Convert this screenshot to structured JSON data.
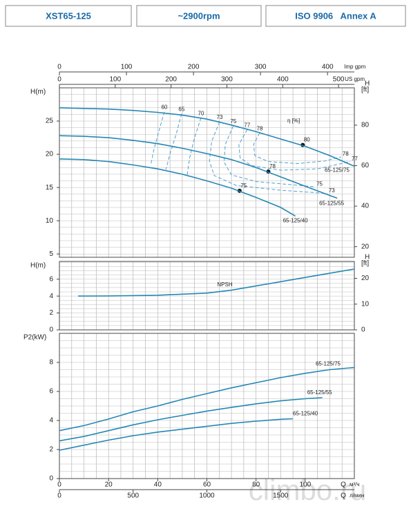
{
  "header": {
    "model": "XST65-125",
    "speed": "~2900rpm",
    "standard": "ISO 9906   Annex A"
  },
  "watermark": "climbo.ru",
  "chart_data": [
    {
      "type": "line",
      "ylabel": "H(m)",
      "y2title": "H",
      "y2label": "[ft]",
      "xlim": [
        0,
        120
      ],
      "ylim": [
        4.5,
        30
      ],
      "yticks": [
        5,
        10,
        15,
        20,
        25
      ],
      "y2lim": [
        14.76,
        98.43
      ],
      "y2ticks": [
        20,
        40,
        60,
        80
      ],
      "grid": true,
      "xminor": 5,
      "yminor": 1,
      "x2_axes": [
        {
          "label": "Imp gpm",
          "xlim": [
            0,
            440
          ],
          "xticks": [
            0,
            100,
            200,
            300,
            400
          ]
        },
        {
          "label": "US gpm",
          "xlim": [
            0,
            528.3
          ],
          "xticks": [
            0,
            100,
            200,
            300,
            400,
            500
          ]
        }
      ],
      "series": [
        {
          "name": "65-125/75",
          "color": "#2387b5",
          "x": [
            0,
            10,
            20,
            30,
            40,
            50,
            60,
            70,
            80,
            90,
            100,
            110,
            120
          ],
          "values": [
            27.0,
            26.9,
            26.8,
            26.6,
            26.3,
            25.9,
            25.3,
            24.4,
            23.4,
            22.3,
            21.2,
            19.8,
            18.2
          ]
        },
        {
          "name": "65-125/55",
          "color": "#2387b5",
          "x": [
            0,
            10,
            20,
            30,
            40,
            50,
            60,
            70,
            80,
            90,
            100,
            110,
            113
          ],
          "values": [
            22.8,
            22.7,
            22.5,
            22.1,
            21.6,
            20.9,
            20.1,
            19.2,
            18.0,
            16.6,
            15.2,
            13.8,
            13.4
          ]
        },
        {
          "name": "65-125/40",
          "color": "#2387b5",
          "x": [
            0,
            10,
            20,
            30,
            40,
            50,
            60,
            70,
            80,
            90,
            96
          ],
          "values": [
            19.3,
            19.2,
            18.9,
            18.4,
            17.8,
            17.0,
            16.0,
            14.9,
            13.5,
            12.0,
            10.7
          ]
        }
      ],
      "efficiency_title": "η [%]",
      "efficiency_lines": [
        {
          "label": "60",
          "x": [
            42.7,
            40.5,
            38.5,
            37.1
          ],
          "y": [
            26.4,
            23.5,
            20.8,
            18.3
          ],
          "end_label": false
        },
        {
          "label": "65",
          "x": [
            49.7,
            47.5,
            45.2,
            43.3
          ],
          "y": [
            26.1,
            23,
            20.3,
            17.7
          ],
          "end_label": false
        },
        {
          "label": "70",
          "x": [
            57.6,
            55,
            53,
            52
          ],
          "y": [
            25.5,
            22.5,
            19.5,
            16.9
          ],
          "end_label": false
        },
        {
          "label": "73",
          "x": [
            65.2,
            62,
            61,
            63,
            72,
            90,
            109
          ],
          "y": [
            24.9,
            22,
            19,
            16.8,
            15.3,
            14.6,
            14.1
          ],
          "end_label": true
        },
        {
          "label": "75",
          "x": [
            70.8,
            67.5,
            67,
            70,
            80,
            95,
            104
          ],
          "y": [
            24.3,
            21.5,
            18.8,
            16.9,
            15.9,
            15.4,
            15.1
          ],
          "end_label": true
        },
        {
          "label": "77",
          "x": [
            76.4,
            73,
            73.5,
            78,
            90,
            105,
            118.3
          ],
          "y": [
            23.7,
            21.5,
            19.5,
            18.3,
            17.6,
            17.8,
            18.9
          ],
          "end_label": true
        },
        {
          "label": "78",
          "x": [
            81.5,
            79,
            79.5,
            85,
            97,
            108,
            114.6
          ],
          "y": [
            23.2,
            21.5,
            19.8,
            18.9,
            18.6,
            19,
            19.6
          ],
          "end_label": true
        }
      ],
      "bep": [
        {
          "x": 99,
          "y": 21.4,
          "label": "80"
        },
        {
          "x": 85,
          "y": 17.4,
          "label": "78"
        },
        {
          "x": 73.3,
          "y": 14.5,
          "label": "75"
        }
      ]
    },
    {
      "type": "line",
      "ylabel": "H(m)",
      "y2title": "H",
      "y2label": "[ft]",
      "xlim": [
        0,
        120
      ],
      "ylim": [
        0,
        8.1
      ],
      "yticks": [
        0,
        2,
        4,
        6
      ],
      "y2lim": [
        0,
        26.57
      ],
      "y2ticks": [
        0,
        10,
        20
      ],
      "grid": true,
      "xminor": 5,
      "yminor": 0.5,
      "series": [
        {
          "name": "NPSH",
          "color": "#2387b5",
          "x": [
            7.6,
            20,
            40,
            60,
            70,
            80,
            90,
            100,
            110,
            120
          ],
          "values": [
            4.0,
            4.02,
            4.1,
            4.35,
            4.7,
            5.2,
            5.7,
            6.2,
            6.7,
            7.2
          ]
        }
      ]
    },
    {
      "type": "line",
      "ylabel": "P2(kW)",
      "xlabel": "Q",
      "xunit": "м³/ч",
      "xlim": [
        0,
        120
      ],
      "xticks": [
        0,
        20,
        40,
        60,
        80,
        100
      ],
      "ylim": [
        0,
        10
      ],
      "yticks": [
        0,
        2,
        4,
        6,
        8
      ],
      "grid": true,
      "xminor": 5,
      "yminor": 0.5,
      "x3_axis": {
        "label": "Q",
        "unit": "л/мин",
        "xlim": [
          0,
          2000
        ],
        "xticks": [
          0,
          500,
          1000,
          1500
        ]
      },
      "series": [
        {
          "name": "65-125/75",
          "color": "#2387b5",
          "x": [
            0,
            10,
            20,
            30,
            40,
            50,
            60,
            70,
            80,
            90,
            100,
            110,
            120
          ],
          "values": [
            3.3,
            3.65,
            4.1,
            4.6,
            5.0,
            5.45,
            5.85,
            6.25,
            6.6,
            6.95,
            7.25,
            7.5,
            7.65
          ]
        },
        {
          "name": "65-125/55",
          "color": "#2387b5",
          "x": [
            0,
            10,
            20,
            30,
            40,
            50,
            60,
            70,
            80,
            90,
            100,
            107
          ],
          "values": [
            2.6,
            2.9,
            3.3,
            3.7,
            4.05,
            4.35,
            4.65,
            4.9,
            5.15,
            5.35,
            5.5,
            5.57
          ]
        },
        {
          "name": "65-125/40",
          "color": "#2387b5",
          "x": [
            0,
            10,
            20,
            30,
            40,
            50,
            60,
            70,
            80,
            90,
            95
          ],
          "values": [
            1.95,
            2.3,
            2.65,
            2.95,
            3.2,
            3.4,
            3.6,
            3.8,
            3.95,
            4.08,
            4.12
          ]
        }
      ]
    }
  ]
}
